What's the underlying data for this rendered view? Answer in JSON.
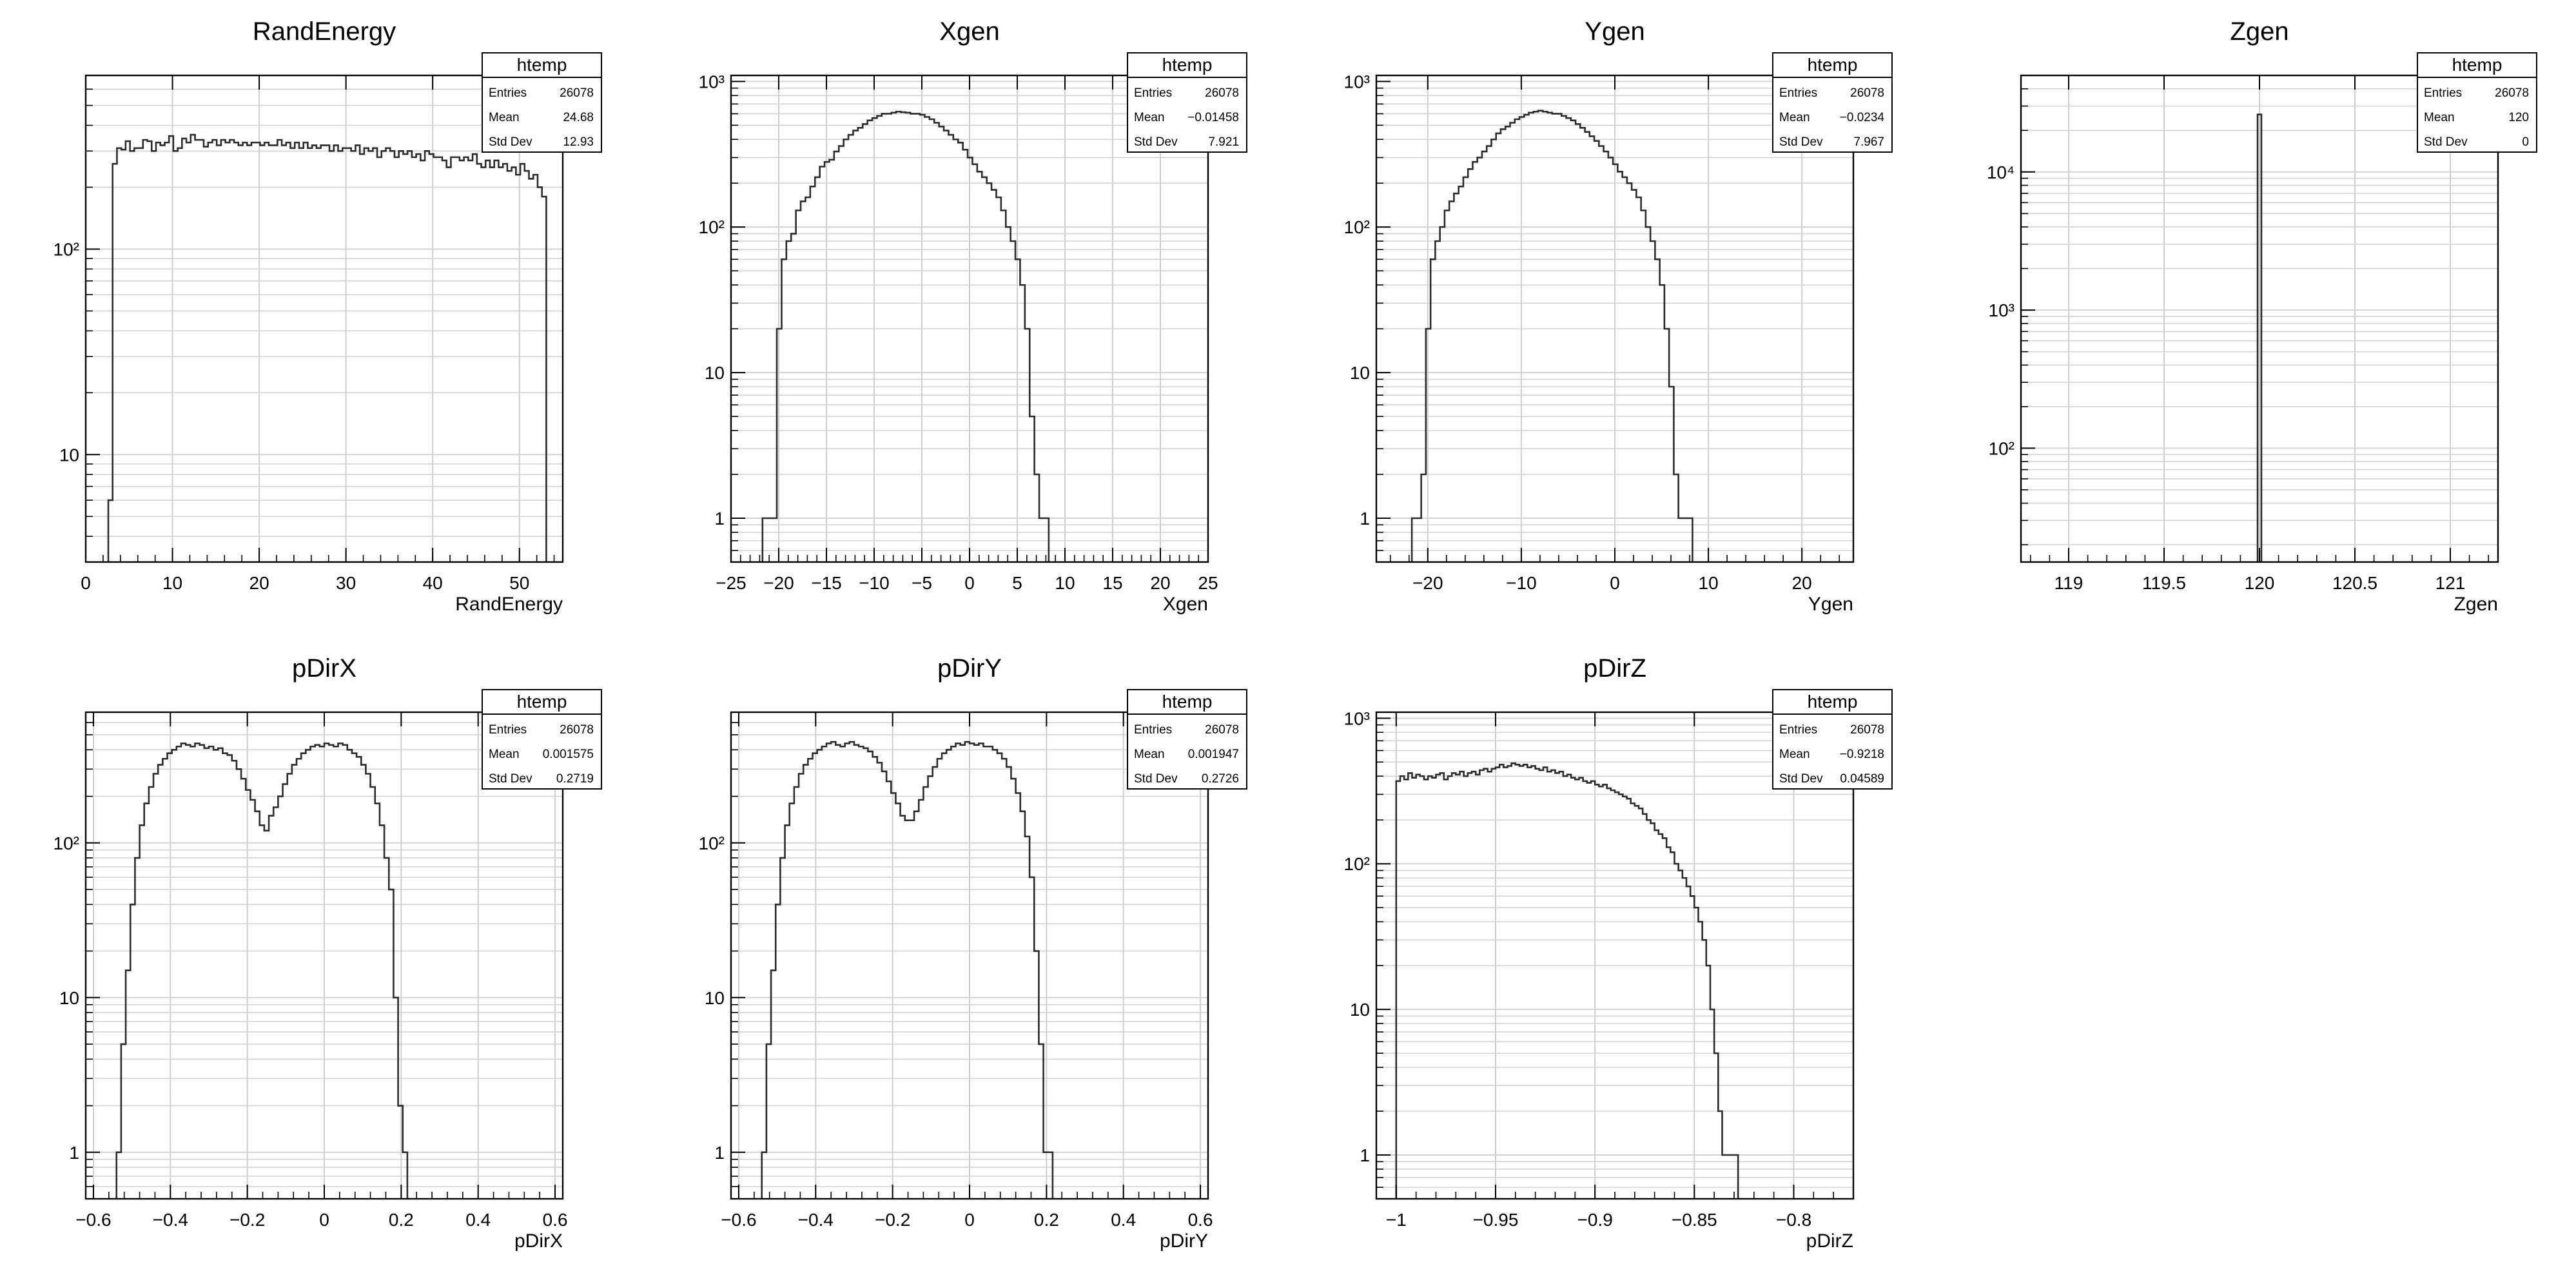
{
  "chart_data": [
    {
      "type": "histogram",
      "title": "RandEnergy",
      "xlabel": "RandEnergy",
      "ylabel": "",
      "ylog": true,
      "grid": true,
      "xlim": [
        0,
        55
      ],
      "ylim": [
        3,
        700
      ],
      "xticks": [
        0,
        10,
        20,
        30,
        40,
        50
      ],
      "yticks": [
        {
          "v": 10,
          "label": "10"
        },
        {
          "v": 100,
          "label": "10²"
        }
      ],
      "stats": {
        "name": "htemp",
        "rows": [
          {
            "label": "Entries",
            "value": "26078"
          },
          {
            "label": "Mean",
            "value": "24.68"
          },
          {
            "label": "Std Dev",
            "value": "12.93"
          }
        ]
      },
      "bins": {
        "x0": 2.6,
        "width": 0.5,
        "counts": [
          6,
          260,
          310,
          305,
          335,
          300,
          310,
          310,
          340,
          335,
          300,
          330,
          320,
          330,
          355,
          300,
          310,
          345,
          330,
          360,
          340,
          340,
          315,
          330,
          340,
          320,
          340,
          330,
          340,
          330,
          320,
          330,
          320,
          330,
          330,
          320,
          330,
          320,
          320,
          340,
          320,
          330,
          310,
          330,
          310,
          330,
          310,
          320,
          310,
          320,
          320,
          300,
          320,
          300,
          310,
          310,
          300,
          320,
          290,
          310,
          300,
          310,
          280,
          300,
          310,
          300,
          280,
          300,
          290,
          300,
          280,
          290,
          270,
          300,
          290,
          280,
          280,
          270,
          250,
          280,
          280,
          270,
          280,
          270,
          290,
          260,
          250,
          270,
          250,
          270,
          250,
          260,
          240,
          250,
          230,
          260,
          240,
          220,
          230,
          200,
          180
        ]
      }
    },
    {
      "type": "histogram",
      "title": "Xgen",
      "xlabel": "Xgen",
      "ylabel": "",
      "ylog": true,
      "grid": true,
      "xlim": [
        -25,
        25
      ],
      "ylim": [
        0.5,
        1100
      ],
      "xticks": [
        -25,
        -20,
        -15,
        -10,
        -5,
        0,
        5,
        10,
        15,
        20,
        25
      ],
      "yticks": [
        {
          "v": 1,
          "label": "1"
        },
        {
          "v": 10,
          "label": "10"
        },
        {
          "v": 100,
          "label": "10²"
        },
        {
          "v": 1000,
          "label": "10³"
        }
      ],
      "stats": {
        "name": "htemp",
        "rows": [
          {
            "label": "Entries",
            "value": "26078"
          },
          {
            "label": "Mean",
            "value": "−0.01458"
          },
          {
            "label": "Std Dev",
            "value": "7.921"
          }
        ]
      },
      "bins": {
        "x0": -21.7,
        "width": 0.5,
        "counts": [
          1,
          1,
          1,
          20,
          60,
          80,
          90,
          130,
          150,
          160,
          190,
          220,
          260,
          280,
          290,
          330,
          360,
          400,
          430,
          460,
          480,
          510,
          540,
          560,
          580,
          600,
          600,
          610,
          620,
          615,
          610,
          600,
          600,
          590,
          570,
          550,
          520,
          490,
          460,
          430,
          400,
          380,
          340,
          300,
          270,
          240,
          220,
          200,
          180,
          160,
          130,
          100,
          80,
          60,
          40,
          20,
          5,
          2,
          1,
          1
        ]
      }
    },
    {
      "type": "histogram",
      "title": "Ygen",
      "xlabel": "Ygen",
      "ylabel": "",
      "ylog": true,
      "grid": true,
      "xlim": [
        -25.5,
        25.5
      ],
      "ylim": [
        0.5,
        1100
      ],
      "xticks": [
        -20,
        -10,
        0,
        10,
        20
      ],
      "yticks": [
        {
          "v": 1,
          "label": "1"
        },
        {
          "v": 10,
          "label": "10"
        },
        {
          "v": 100,
          "label": "10²"
        },
        {
          "v": 1000,
          "label": "10³"
        }
      ],
      "stats": {
        "name": "htemp",
        "rows": [
          {
            "label": "Entries",
            "value": "26078"
          },
          {
            "label": "Mean",
            "value": "−0.0234"
          },
          {
            "label": "Std Dev",
            "value": "7.967"
          }
        ]
      },
      "bins": {
        "x0": -21.7,
        "width": 0.5,
        "counts": [
          1,
          1,
          2,
          20,
          60,
          80,
          100,
          130,
          150,
          170,
          190,
          220,
          250,
          280,
          300,
          330,
          360,
          400,
          440,
          470,
          490,
          520,
          550,
          570,
          590,
          610,
          620,
          630,
          620,
          610,
          600,
          600,
          580,
          560,
          540,
          510,
          480,
          450,
          420,
          390,
          360,
          330,
          300,
          270,
          240,
          220,
          200,
          180,
          160,
          130,
          100,
          80,
          60,
          40,
          20,
          8,
          2,
          1,
          1,
          1
        ]
      }
    },
    {
      "type": "histogram",
      "title": "Zgen",
      "xlabel": "Zgen",
      "ylabel": "",
      "ylog": true,
      "grid": true,
      "xlim": [
        118.75,
        121.25
      ],
      "ylim": [
        15,
        50000
      ],
      "xticks": [
        119,
        119.5,
        120,
        120.5,
        121
      ],
      "yticks": [
        {
          "v": 100,
          "label": "10²"
        },
        {
          "v": 1000,
          "label": "10³"
        },
        {
          "v": 10000,
          "label": "10⁴"
        }
      ],
      "stats": {
        "name": "htemp",
        "rows": [
          {
            "label": "Entries",
            "value": "26078"
          },
          {
            "label": "Mean",
            "value": "120"
          },
          {
            "label": "Std Dev",
            "value": "0"
          }
        ]
      },
      "bins": {
        "x0": 119.99,
        "width": 0.02,
        "counts": [
          26078
        ]
      }
    },
    {
      "type": "histogram",
      "title": "pDirX",
      "xlabel": "pDirX",
      "ylabel": "",
      "ylog": true,
      "grid": true,
      "xlim": [
        -0.62,
        0.62
      ],
      "ylim": [
        0.5,
        700
      ],
      "xticks": [
        -0.6,
        -0.4,
        -0.2,
        0,
        0.2,
        0.4,
        0.6
      ],
      "yticks": [
        {
          "v": 1,
          "label": "1"
        },
        {
          "v": 10,
          "label": "10"
        },
        {
          "v": 100,
          "label": "10²"
        }
      ],
      "stats": {
        "name": "htemp",
        "rows": [
          {
            "label": "Entries",
            "value": "26078"
          },
          {
            "label": "Mean",
            "value": "0.001575"
          },
          {
            "label": "Std Dev",
            "value": "0.2719"
          }
        ]
      },
      "bins": {
        "x0": -0.54,
        "width": 0.012,
        "counts": [
          1,
          5,
          15,
          40,
          80,
          130,
          180,
          230,
          280,
          320,
          350,
          380,
          400,
          420,
          440,
          430,
          420,
          440,
          430,
          410,
          420,
          400,
          410,
          380,
          370,
          340,
          300,
          260,
          220,
          190,
          160,
          130,
          120,
          150,
          170,
          200,
          240,
          280,
          320,
          350,
          380,
          400,
          420,
          430,
          420,
          440,
          430,
          420,
          440,
          430,
          400,
          380,
          360,
          320,
          280,
          230,
          180,
          130,
          80,
          50,
          10,
          2,
          1
        ]
      }
    },
    {
      "type": "histogram",
      "title": "pDirY",
      "xlabel": "pDirY",
      "ylabel": "",
      "ylog": true,
      "grid": true,
      "xlim": [
        -0.62,
        0.62
      ],
      "ylim": [
        0.5,
        700
      ],
      "xticks": [
        -0.6,
        -0.4,
        -0.2,
        0,
        0.2,
        0.4,
        0.6
      ],
      "yticks": [
        {
          "v": 1,
          "label": "1"
        },
        {
          "v": 10,
          "label": "10"
        },
        {
          "v": 100,
          "label": "10²"
        }
      ],
      "stats": {
        "name": "htemp",
        "rows": [
          {
            "label": "Entries",
            "value": "26078"
          },
          {
            "label": "Mean",
            "value": "0.001947"
          },
          {
            "label": "Std Dev",
            "value": "0.2726"
          }
        ]
      },
      "bins": {
        "x0": -0.54,
        "width": 0.012,
        "counts": [
          1,
          5,
          15,
          40,
          80,
          130,
          180,
          230,
          280,
          320,
          350,
          380,
          400,
          420,
          440,
          450,
          430,
          420,
          440,
          450,
          430,
          420,
          410,
          390,
          360,
          330,
          290,
          250,
          210,
          180,
          150,
          140,
          140,
          160,
          190,
          230,
          270,
          310,
          350,
          380,
          400,
          420,
          440,
          430,
          450,
          440,
          430,
          440,
          420,
          420,
          400,
          380,
          350,
          310,
          260,
          210,
          160,
          110,
          60,
          20,
          5,
          1,
          1
        ]
      }
    },
    {
      "type": "histogram",
      "title": "pDirZ",
      "xlabel": "pDirZ",
      "ylabel": "",
      "ylog": true,
      "grid": true,
      "xlim": [
        -1.01,
        -0.77
      ],
      "ylim": [
        0.5,
        1100
      ],
      "xticks": [
        -1,
        -0.95,
        -0.9,
        -0.85,
        -0.8
      ],
      "yticks": [
        {
          "v": 1,
          "label": "1"
        },
        {
          "v": 10,
          "label": "10"
        },
        {
          "v": 100,
          "label": "10²"
        },
        {
          "v": 1000,
          "label": "10³"
        }
      ],
      "stats": {
        "name": "htemp",
        "rows": [
          {
            "label": "Entries",
            "value": "26078"
          },
          {
            "label": "Mean",
            "value": "−0.9218"
          },
          {
            "label": "Std Dev",
            "value": "0.04589"
          }
        ]
      },
      "bins": {
        "x0": -1.0,
        "width": 0.002,
        "counts": [
          370,
          400,
          380,
          420,
          390,
          410,
          400,
          380,
          400,
          390,
          410,
          420,
          380,
          400,
          420,
          410,
          430,
          400,
          420,
          430,
          410,
          440,
          450,
          430,
          450,
          460,
          480,
          460,
          470,
          490,
          480,
          470,
          480,
          460,
          470,
          450,
          440,
          460,
          430,
          440,
          420,
          430,
          400,
          410,
          390,
          380,
          390,
          370,
          360,
          370,
          350,
          340,
          350,
          330,
          320,
          310,
          300,
          290,
          280,
          260,
          250,
          240,
          220,
          200,
          190,
          170,
          160,
          150,
          130,
          120,
          100,
          90,
          80,
          70,
          60,
          50,
          40,
          30,
          20,
          10,
          5,
          2,
          1,
          1,
          1,
          1
        ]
      }
    }
  ]
}
